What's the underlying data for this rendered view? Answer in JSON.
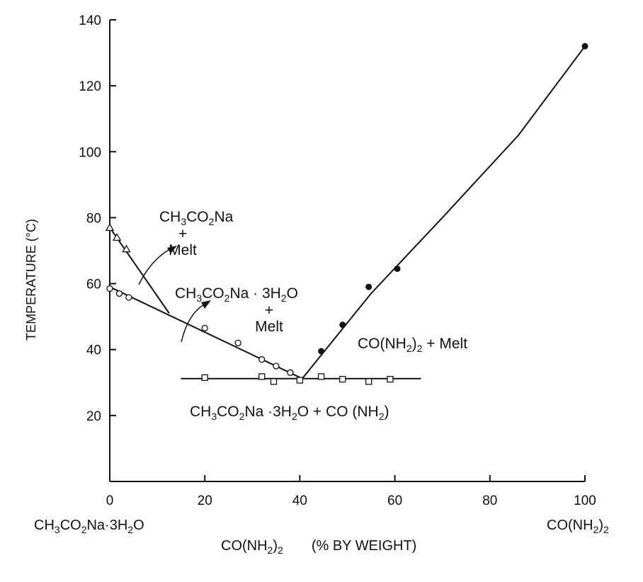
{
  "chart_data": {
    "type": "scatter",
    "title": "",
    "ylabel": "TEMPERATURE (°C)",
    "xlabel": {
      "prefix": "CO(NH",
      "sub": "2",
      "suffix": ")",
      "sub2": "2",
      "unit": "(% BY WEIGHT)"
    },
    "xlim": [
      0,
      100
    ],
    "ylim": [
      0,
      140
    ],
    "x_ticks": [
      0,
      20,
      40,
      60,
      80,
      100
    ],
    "y_ticks": [
      20,
      40,
      60,
      80,
      100,
      120,
      140
    ],
    "x_tick_labels": [
      "0",
      "20",
      "40",
      "60",
      "80",
      "100"
    ],
    "y_tick_labels": [
      "20",
      "40",
      "60",
      "80",
      "100",
      "120",
      "140"
    ],
    "x_endpoint_labels": {
      "left": "CH3CO2Na·3H2O",
      "right": "CO(NH2)2"
    },
    "series": [
      {
        "marker": "triangle-open",
        "points": [
          [
            0,
            77
          ],
          [
            1.5,
            74
          ],
          [
            3.5,
            70.5
          ]
        ]
      },
      {
        "marker": "circle-open",
        "points": [
          [
            0,
            58.5
          ],
          [
            2,
            57
          ],
          [
            4,
            55.8
          ],
          [
            20,
            46.5
          ],
          [
            27,
            42
          ],
          [
            32,
            37
          ],
          [
            35,
            35
          ],
          [
            38,
            33
          ]
        ]
      },
      {
        "marker": "square-open",
        "points": [
          [
            20,
            31.5
          ],
          [
            32,
            31.8
          ],
          [
            34.5,
            30.3
          ],
          [
            40,
            30.7
          ],
          [
            44.5,
            31.8
          ],
          [
            49,
            31
          ],
          [
            54.5,
            30.3
          ],
          [
            59,
            31
          ]
        ]
      },
      {
        "marker": "circle-filled",
        "points": [
          [
            44.5,
            39.5
          ],
          [
            49,
            47.5
          ],
          [
            54.5,
            59
          ],
          [
            60.5,
            64.5
          ],
          [
            100,
            132
          ]
        ]
      }
    ],
    "lines": [
      {
        "points": [
          [
            0,
            77
          ],
          [
            12.5,
            51
          ]
        ]
      },
      {
        "points": [
          [
            0,
            59
          ],
          [
            40.5,
            31.2
          ]
        ]
      },
      {
        "points": [
          [
            15,
            31.2
          ],
          [
            65.5,
            31.2
          ]
        ]
      },
      {
        "points": [
          [
            40.5,
            31.2
          ],
          [
            55,
            57
          ],
          [
            70,
            80
          ],
          [
            86,
            105
          ],
          [
            100,
            132
          ]
        ]
      }
    ],
    "annotations": {
      "region1": {
        "line1": "CH3CO2Na",
        "line2": "+",
        "line3": "Melt"
      },
      "region2": {
        "line1": "CH3CO2Na · 3H2O",
        "line2": "+",
        "line3": "Melt"
      },
      "region3": "CO(NH2)2 + Melt",
      "region4": "CH3CO2Na ·3H2O + CO (NH2)"
    },
    "grid": false,
    "legend": "none"
  }
}
